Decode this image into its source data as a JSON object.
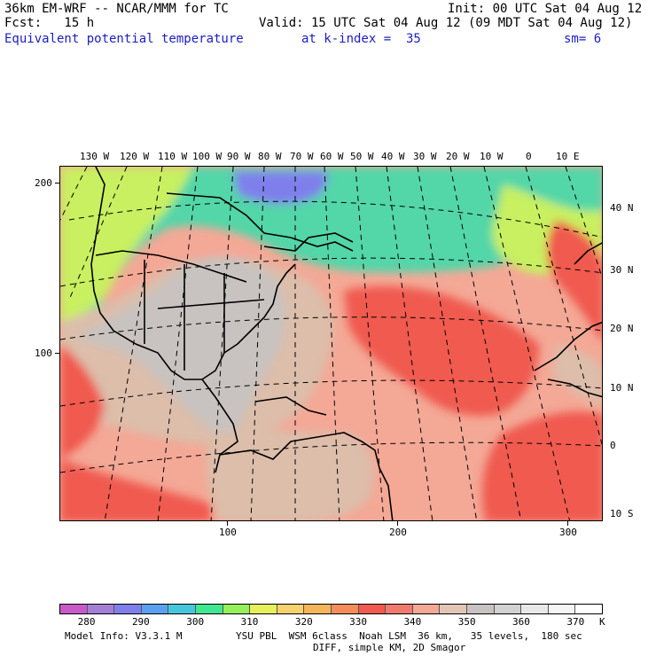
{
  "header": {
    "line1_left": "36km EM-WRF -- NCAR/MMM for TC",
    "line1_right": "Init: 00 UTC Sat 04 Aug 12",
    "line2_left": "Fcst:   15 h",
    "line2_right": "Valid: 15 UTC Sat 04 Aug 12 (09 MDT Sat 04 Aug 12)",
    "field_name": "Equivalent potential temperature",
    "level": "at k-index =  35",
    "smoothing": "sm= 6"
  },
  "map": {
    "top_lon_labels": [
      "130 W",
      "120 W",
      "110 W",
      "100 W",
      "90 W",
      "80 W",
      "70 W",
      "60 W",
      "50 W",
      "40 W",
      "30 W",
      "20 W",
      "10 W",
      "0",
      "10 E"
    ],
    "right_lat_labels": [
      "40 N",
      "30 N",
      "20 N",
      "10 N",
      "0",
      "10 S"
    ],
    "left_axis_labels": [
      "200",
      "100"
    ],
    "bottom_axis_labels": [
      "100",
      "200",
      "300"
    ],
    "colors": {
      "cold": "#7f7fec",
      "cool": "#53d6a8",
      "mild": "#c8f060",
      "warm": "#f4a896",
      "hot": "#f05a50",
      "tan": "#dcbeaa",
      "gray": "#c8c3c0"
    }
  },
  "colorbar": {
    "colors": [
      "#c85ac8",
      "#a37fd6",
      "#7f7fec",
      "#5aa0f0",
      "#46c8dc",
      "#40e690",
      "#96f05a",
      "#e6f05a",
      "#f5d26e",
      "#f5b45a",
      "#f58c5a",
      "#f05a50",
      "#f07a6e",
      "#f4a896",
      "#e1c6b4",
      "#c8c3c0",
      "#d2d2d2",
      "#e8e8e8",
      "#f5f5f5",
      "#ffffff"
    ],
    "labels": [
      "280",
      "290",
      "300",
      "310",
      "320",
      "330",
      "340",
      "350",
      "360",
      "370"
    ],
    "unit": "K"
  },
  "footer": {
    "line1_left": "Model Info: V3.3.1 M",
    "line1_right": "YSU PBL  WSM 6class  Noah LSM  36 km,   35 levels,  180 sec",
    "line2_right": "DIFF, simple KM, 2D Smagor"
  }
}
